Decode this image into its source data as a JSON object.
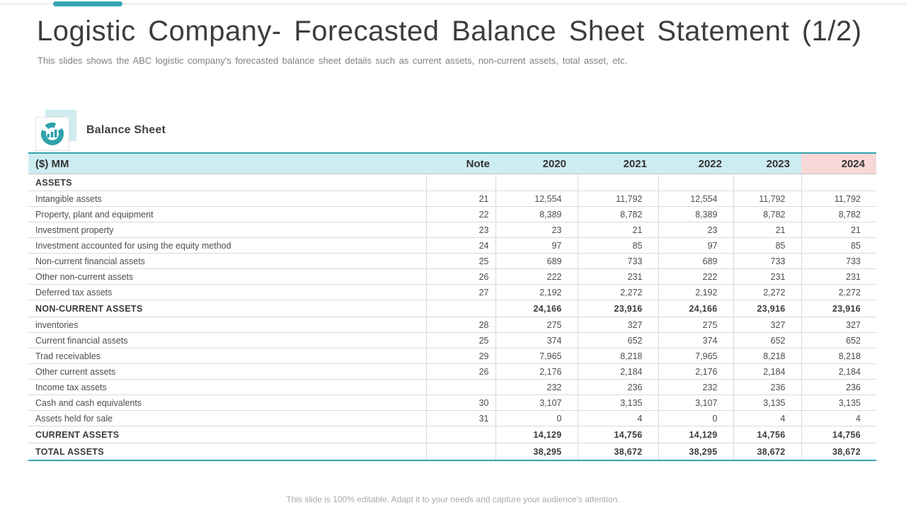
{
  "colors": {
    "accent": "#35a4ae",
    "header_bg": "#cdecf2",
    "highlight_bg": "#f8d8d6"
  },
  "header": {
    "title": "Logistic Company- Forecasted Balance Sheet Statement (1/2)",
    "subtitle": "This slides shows the ABC logistic company's forecasted balance sheet details such as current assets, non-current assets, total asset, etc."
  },
  "section_label": {
    "icon": "donut-bar-chart-icon",
    "label": "Balance Sheet"
  },
  "table": {
    "unit_header": "($) MM",
    "note_header": "Note",
    "year_headers": [
      "2020",
      "2021",
      "2022",
      "2023",
      "2024"
    ],
    "highlight_year": "2024",
    "rows": [
      {
        "type": "section",
        "label": "ASSETS",
        "note": "",
        "values": [
          "",
          "",
          "",
          "",
          ""
        ]
      },
      {
        "type": "item",
        "label": "Intangible assets",
        "note": "21",
        "values": [
          "12,554",
          "11,792",
          "12,554",
          "11,792",
          "11,792"
        ]
      },
      {
        "type": "item",
        "label": "Property, plant and equipment",
        "note": "22",
        "values": [
          "8,389",
          "8,782",
          "8,389",
          "8,782",
          "8,782"
        ]
      },
      {
        "type": "item",
        "label": "Investment property",
        "note": "23",
        "values": [
          "23",
          "21",
          "23",
          "21",
          "21"
        ]
      },
      {
        "type": "item",
        "label": "Investment accounted for using the equity method",
        "note": "24",
        "values": [
          "97",
          "85",
          "97",
          "85",
          "85"
        ]
      },
      {
        "type": "item",
        "label": "Non-current financial assets",
        "note": "25",
        "values": [
          "689",
          "733",
          "689",
          "733",
          "733"
        ]
      },
      {
        "type": "item",
        "label": "Other non-current assets",
        "note": "26",
        "values": [
          "222",
          "231",
          "222",
          "231",
          "231"
        ]
      },
      {
        "type": "item",
        "label": "Deferred tax assets",
        "note": "27",
        "values": [
          "2,192",
          "2,272",
          "2,192",
          "2,272",
          "2,272"
        ]
      },
      {
        "type": "total",
        "label": "NON-CURRENT ASSETS",
        "note": "",
        "values": [
          "24,166",
          "23,916",
          "24,166",
          "23,916",
          "23,916"
        ]
      },
      {
        "type": "item",
        "label": "inventories",
        "note": "28",
        "values": [
          "275",
          "327",
          "275",
          "327",
          "327"
        ]
      },
      {
        "type": "item",
        "label": "Current financial assets",
        "note": "25",
        "values": [
          "374",
          "652",
          "374",
          "652",
          "652"
        ]
      },
      {
        "type": "item",
        "label": "Trad receivables",
        "note": "29",
        "values": [
          "7,965",
          "8,218",
          "7,965",
          "8,218",
          "8,218"
        ]
      },
      {
        "type": "item",
        "label": "Other current assets",
        "note": "26",
        "values": [
          "2,176",
          "2,184",
          "2,176",
          "2,184",
          "2,184"
        ]
      },
      {
        "type": "item",
        "label": "Income tax assets",
        "note": "",
        "values": [
          "232",
          "236",
          "232",
          "236",
          "236"
        ]
      },
      {
        "type": "item",
        "label": "Cash and cash equivalents",
        "note": "30",
        "values": [
          "3,107",
          "3,135",
          "3,107",
          "3,135",
          "3,135"
        ]
      },
      {
        "type": "item",
        "label": "Assets held for sale",
        "note": "31",
        "values": [
          "0",
          "4",
          "0",
          "4",
          "4"
        ]
      },
      {
        "type": "total",
        "label": "CURRENT ASSETS",
        "note": "",
        "values": [
          "14,129",
          "14,756",
          "14,129",
          "14,756",
          "14,756"
        ]
      },
      {
        "type": "total",
        "label": "TOTAL ASSETS",
        "note": "",
        "values": [
          "38,295",
          "38,672",
          "38,295",
          "38,672",
          "38,672"
        ]
      }
    ]
  },
  "footer": {
    "note": "This slide is 100% editable. Adapt it to your needs and capture your audience's attention."
  }
}
